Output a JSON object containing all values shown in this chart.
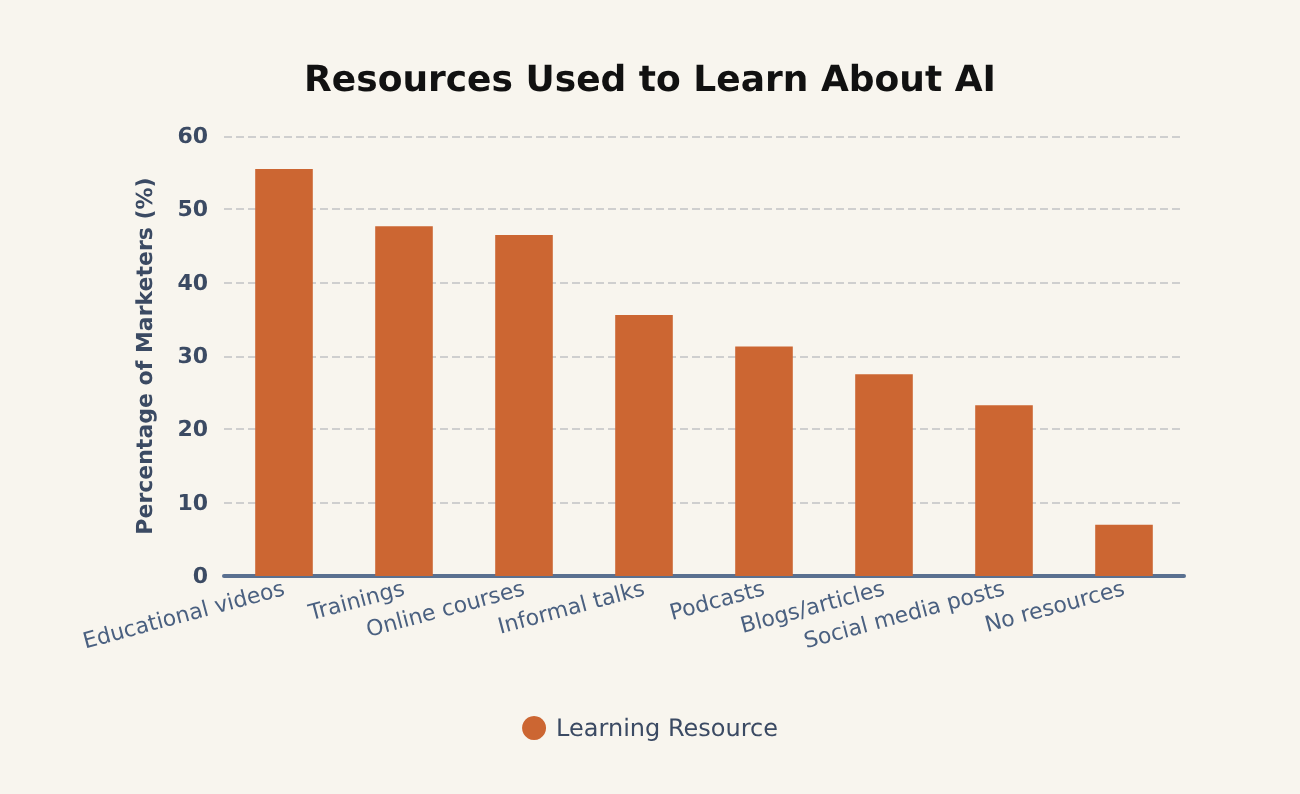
{
  "chart_data": {
    "type": "bar",
    "title": "Resources Used to Learn About AI",
    "ylabel": "Percentage of Marketers (%)",
    "categories": [
      "Educational videos",
      "Trainings",
      "Online courses",
      "Informal talks",
      "Podcasts",
      "Blogs/articles",
      "Social media posts",
      "No resources"
    ],
    "series": [
      {
        "name": "Learning Resource",
        "color": "#cc6632",
        "values": [
          55.5,
          47.7,
          46.5,
          35.6,
          31.3,
          27.5,
          23.3,
          7.0
        ]
      }
    ],
    "ylim": [
      0,
      60
    ],
    "yticks": [
      0,
      10,
      20,
      30,
      40,
      50,
      60
    ],
    "grid": "y",
    "legend": "bottom"
  }
}
